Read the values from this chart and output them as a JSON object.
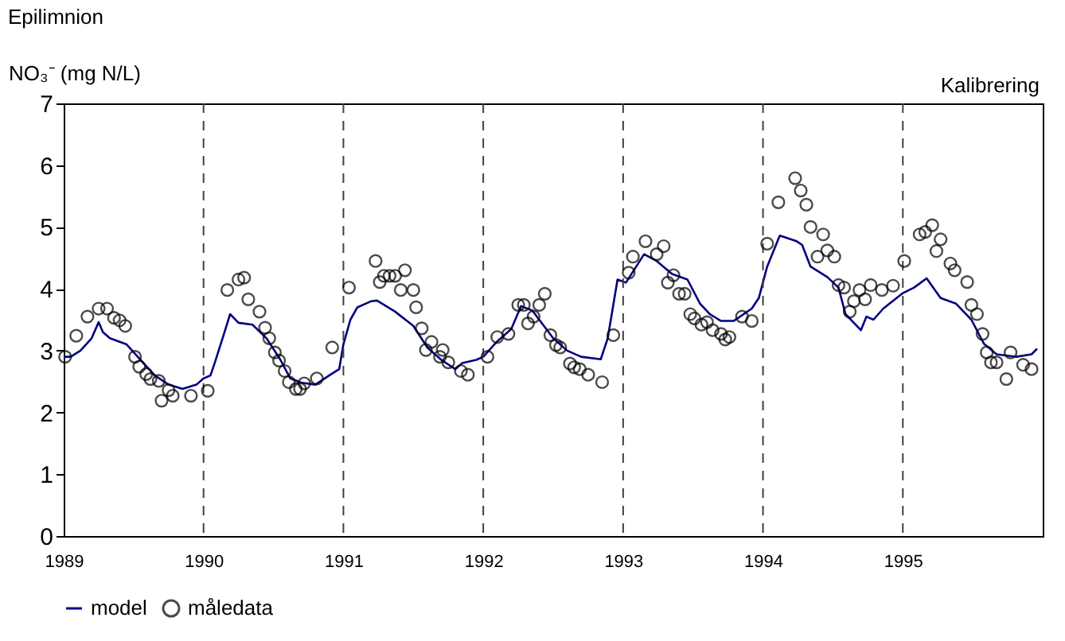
{
  "chart_data": {
    "type": "line",
    "title": "Epilimnion",
    "ylabel": "NO₃⁻ (mg N/L)",
    "annotations": [
      "Kalibrering"
    ],
    "xlim": [
      1989,
      1996
    ],
    "xticks": [
      1989,
      1990,
      1991,
      1992,
      1993,
      1994,
      1995
    ],
    "ylim": [
      0,
      7
    ],
    "yticks": [
      0,
      1,
      2,
      3,
      4,
      5,
      6,
      7
    ],
    "grid": false,
    "legend": "bottom",
    "ref_lines": [
      {
        "axis": "x",
        "value": 1990,
        "color": "#404040",
        "line_style": "dashed"
      },
      {
        "axis": "x",
        "value": 1991,
        "color": "#404040",
        "line_style": "dashed"
      },
      {
        "axis": "x",
        "value": 1992,
        "color": "#404040",
        "line_style": "dashed"
      },
      {
        "axis": "x",
        "value": 1993,
        "color": "#404040",
        "line_style": "dashed"
      },
      {
        "axis": "x",
        "value": 1994,
        "color": "#404040",
        "line_style": "dashed"
      },
      {
        "axis": "x",
        "value": 1995,
        "color": "#404040",
        "line_style": "dashed"
      }
    ],
    "series": [
      {
        "name": "model",
        "color": "#000080",
        "marker": "none",
        "line_style": "solid",
        "x": [
          1989.0,
          1989.05,
          1989.12,
          1989.2,
          1989.25,
          1989.28,
          1989.33,
          1989.45,
          1989.55,
          1989.65,
          1989.75,
          1989.85,
          1989.95,
          1990.0,
          1990.05,
          1990.08,
          1990.15,
          1990.19,
          1990.25,
          1990.35,
          1990.45,
          1990.55,
          1990.62,
          1990.7,
          1990.8,
          1990.9,
          1990.97,
          1991.0,
          1991.05,
          1991.1,
          1991.2,
          1991.24,
          1991.37,
          1991.5,
          1991.6,
          1991.7,
          1991.8,
          1991.85,
          1991.95,
          1992.0,
          1992.1,
          1992.2,
          1992.27,
          1992.35,
          1992.4,
          1992.5,
          1992.6,
          1992.7,
          1992.84,
          1992.89,
          1992.96,
          1993.02,
          1993.15,
          1993.24,
          1993.35,
          1993.46,
          1993.55,
          1993.62,
          1993.7,
          1993.79,
          1993.92,
          1993.97,
          1994.03,
          1994.12,
          1994.24,
          1994.28,
          1994.34,
          1994.46,
          1994.54,
          1994.59,
          1994.7,
          1994.74,
          1994.79,
          1994.86,
          1995.0,
          1995.08,
          1995.17,
          1995.27,
          1995.38,
          1995.49,
          1995.58,
          1995.67,
          1995.81,
          1995.92,
          1995.96
        ],
        "values": [
          2.9,
          2.9,
          3.0,
          3.2,
          3.46,
          3.3,
          3.2,
          3.1,
          2.85,
          2.6,
          2.45,
          2.38,
          2.45,
          2.55,
          2.6,
          2.8,
          3.3,
          3.59,
          3.45,
          3.42,
          3.2,
          2.85,
          2.55,
          2.48,
          2.45,
          2.6,
          2.7,
          3.1,
          3.5,
          3.7,
          3.8,
          3.81,
          3.63,
          3.4,
          3.05,
          2.85,
          2.7,
          2.8,
          2.85,
          2.9,
          3.15,
          3.35,
          3.72,
          3.65,
          3.5,
          3.2,
          3.0,
          2.9,
          2.86,
          3.2,
          4.15,
          4.1,
          4.56,
          4.45,
          4.24,
          4.15,
          3.76,
          3.59,
          3.48,
          3.48,
          3.68,
          3.85,
          4.36,
          4.86,
          4.77,
          4.71,
          4.36,
          4.19,
          4.02,
          3.59,
          3.33,
          3.55,
          3.5,
          3.68,
          3.93,
          4.02,
          4.17,
          3.85,
          3.76,
          3.5,
          3.11,
          2.94,
          2.9,
          2.94,
          3.03
        ]
      },
      {
        "name": "måledata",
        "type": "scatter",
        "color": "#000000",
        "marker": "circle",
        "x": [
          1989.01,
          1989.09,
          1989.17,
          1989.25,
          1989.31,
          1989.36,
          1989.4,
          1989.44,
          1989.51,
          1989.54,
          1989.59,
          1989.62,
          1989.68,
          1989.7,
          1989.75,
          1989.78,
          1989.91,
          1990.03,
          1990.17,
          1990.25,
          1990.29,
          1990.32,
          1990.4,
          1990.44,
          1990.47,
          1990.51,
          1990.54,
          1990.58,
          1990.61,
          1990.66,
          1990.69,
          1990.72,
          1990.81,
          1990.92,
          1991.04,
          1991.23,
          1991.26,
          1991.29,
          1991.33,
          1991.37,
          1991.44,
          1991.41,
          1991.5,
          1991.52,
          1991.56,
          1991.63,
          1991.59,
          1991.71,
          1991.69,
          1991.75,
          1991.84,
          1991.89,
          1992.03,
          1992.1,
          1992.18,
          1992.25,
          1992.29,
          1992.32,
          1992.36,
          1992.4,
          1992.44,
          1992.48,
          1992.52,
          1992.55,
          1992.62,
          1992.65,
          1992.69,
          1992.75,
          1992.85,
          1992.93,
          1993.04,
          1993.07,
          1993.16,
          1993.24,
          1993.29,
          1993.36,
          1993.32,
          1993.4,
          1993.44,
          1993.48,
          1993.51,
          1993.56,
          1993.6,
          1993.64,
          1993.7,
          1993.73,
          1993.76,
          1993.85,
          1993.92,
          1994.03,
          1994.11,
          1994.23,
          1994.27,
          1994.31,
          1994.34,
          1994.43,
          1994.39,
          1994.46,
          1994.51,
          1994.54,
          1994.58,
          1994.62,
          1994.65,
          1994.69,
          1994.73,
          1994.77,
          1994.85,
          1994.93,
          1995.01,
          1995.12,
          1995.16,
          1995.21,
          1995.27,
          1995.24,
          1995.34,
          1995.37,
          1995.46,
          1995.49,
          1995.53,
          1995.57,
          1995.6,
          1995.63,
          1995.67,
          1995.77,
          1995.74,
          1995.86,
          1995.92
        ],
        "values": [
          2.9,
          3.24,
          3.55,
          3.68,
          3.68,
          3.53,
          3.49,
          3.4,
          2.9,
          2.74,
          2.62,
          2.54,
          2.51,
          2.19,
          2.36,
          2.27,
          2.27,
          2.35,
          3.98,
          4.15,
          4.18,
          3.83,
          3.63,
          3.37,
          3.2,
          2.97,
          2.84,
          2.67,
          2.49,
          2.38,
          2.38,
          2.47,
          2.55,
          3.05,
          4.02,
          4.45,
          4.11,
          4.21,
          4.21,
          4.21,
          4.3,
          3.98,
          3.98,
          3.7,
          3.36,
          3.14,
          3.01,
          3.01,
          2.9,
          2.81,
          2.67,
          2.61,
          2.9,
          3.22,
          3.27,
          3.74,
          3.74,
          3.44,
          3.55,
          3.74,
          3.92,
          3.25,
          3.09,
          3.05,
          2.79,
          2.73,
          2.7,
          2.61,
          2.49,
          3.25,
          4.26,
          4.52,
          4.77,
          4.56,
          4.69,
          4.22,
          4.1,
          3.92,
          3.92,
          3.59,
          3.52,
          3.42,
          3.46,
          3.33,
          3.27,
          3.18,
          3.22,
          3.55,
          3.48,
          4.73,
          5.4,
          5.79,
          5.59,
          5.36,
          5.0,
          4.88,
          4.52,
          4.62,
          4.52,
          4.06,
          4.02,
          3.63,
          3.8,
          3.98,
          3.83,
          4.06,
          3.98,
          4.05,
          4.45,
          4.88,
          4.92,
          5.03,
          4.8,
          4.61,
          4.41,
          4.3,
          4.11,
          3.74,
          3.59,
          3.27,
          2.97,
          2.81,
          2.81,
          2.97,
          2.54,
          2.77,
          2.7
        ]
      }
    ]
  }
}
